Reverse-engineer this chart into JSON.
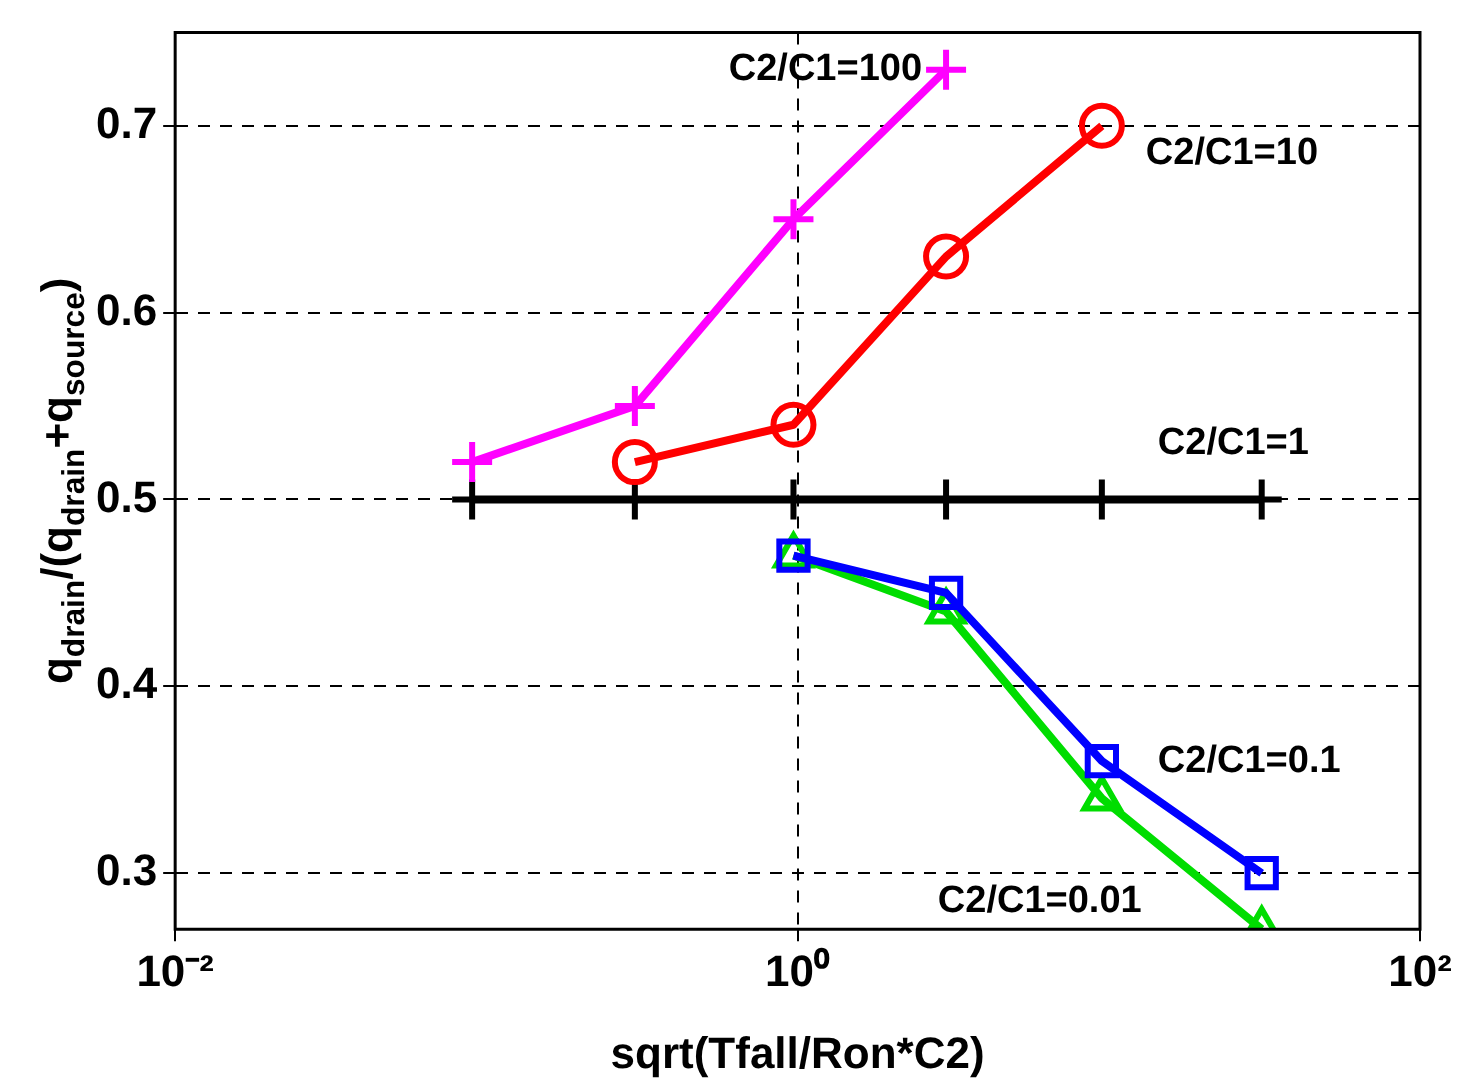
{
  "chart_data": {
    "type": "line",
    "xlabel": "sqrt(Tfall/Ron*C2)",
    "ylabel": "q$_{drain}$/(q$_{drain}$+q$_{source}$)",
    "log": "x",
    "xlim": [
      0.01,
      100
    ],
    "xticks": [
      {
        "value": 0.01,
        "label": "10⁻²"
      },
      {
        "value": 1,
        "label": "10⁰"
      },
      {
        "value": 100,
        "label": "10²"
      }
    ],
    "ylim": [
      0.27,
      0.75
    ],
    "yticks": [
      0.3,
      0.4,
      0.5,
      0.6,
      0.7
    ],
    "grid": true,
    "legend": false,
    "line_style": "solid",
    "series": [
      {
        "name": "C2/C1=100",
        "color": "#ff00ff",
        "marker": "cross",
        "x": [
          0.09,
          0.3,
          0.97,
          3.0
        ],
        "values": [
          0.52,
          0.55,
          0.65,
          0.73
        ]
      },
      {
        "name": "C2/C1=10",
        "color": "#ff0000",
        "marker": "circle",
        "x": [
          0.3,
          0.97,
          3.0,
          9.5
        ],
        "values": [
          0.52,
          0.54,
          0.63,
          0.7
        ]
      },
      {
        "name": "C2/C1=1",
        "color": "#000000",
        "marker": "cross",
        "x": [
          0.09,
          0.3,
          0.97,
          3.0,
          9.5,
          31
        ],
        "values": [
          0.5,
          0.5,
          0.5,
          0.5,
          0.5,
          0.5
        ]
      },
      {
        "name": "C2/C1=0.1",
        "color": "#0000ff",
        "marker": "square",
        "x": [
          0.97,
          3.0,
          9.5,
          31
        ],
        "values": [
          0.47,
          0.45,
          0.36,
          0.3
        ]
      },
      {
        "name": "C2/C1=0.01",
        "color": "#00dd00",
        "marker": "triangle",
        "x": [
          0.97,
          3.0,
          9.5,
          31
        ],
        "values": [
          0.47,
          0.44,
          0.34,
          0.27
        ]
      }
    ]
  }
}
